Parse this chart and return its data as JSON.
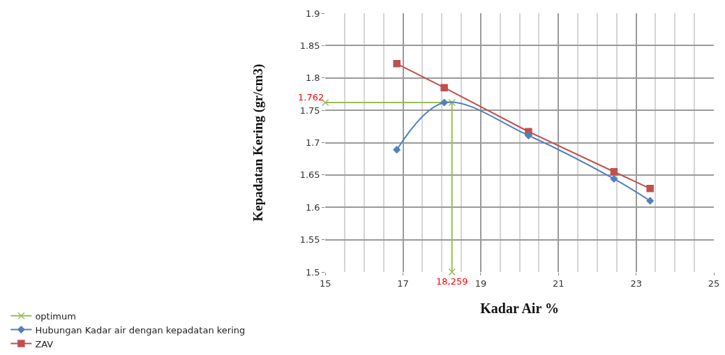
{
  "chart_data": {
    "type": "line",
    "xlabel": "Kadar Air %",
    "ylabel": "Kepadatan Kering (gr/cm3)",
    "xlim": [
      15,
      25
    ],
    "xticks": [
      15,
      17,
      19,
      21,
      23,
      25
    ],
    "ylim": [
      1.5,
      1.9
    ],
    "yticks": [
      1.5,
      1.55,
      1.6,
      1.65,
      1.7,
      1.75,
      1.8,
      1.85,
      1.9
    ],
    "grid": true,
    "legend": "bottom left",
    "series": [
      {
        "name": "optimum",
        "color": "#9bbb59",
        "marker": "cross",
        "x": [
          15,
          18.259,
          18.259
        ],
        "values": [
          1.762,
          1.762,
          1.5
        ]
      },
      {
        "name": "Hubungan Kadar air dengan kepadatan kering",
        "color": "#4f81bd",
        "marker": "diamond",
        "x": [
          16.84,
          18.06,
          20.23,
          22.43,
          23.36
        ],
        "values": [
          1.689,
          1.762,
          1.711,
          1.644,
          1.61
        ]
      },
      {
        "name": "ZAV",
        "color": "#c0504d",
        "marker": "square",
        "x": [
          16.84,
          18.06,
          20.23,
          22.43,
          23.36
        ],
        "values": [
          1.822,
          1.785,
          1.717,
          1.655,
          1.629
        ]
      }
    ],
    "annotations": [
      {
        "text": "1.762",
        "x": 15,
        "y": 1.762
      },
      {
        "text": "18,259",
        "x": 18.259,
        "y": 1.5
      }
    ]
  }
}
